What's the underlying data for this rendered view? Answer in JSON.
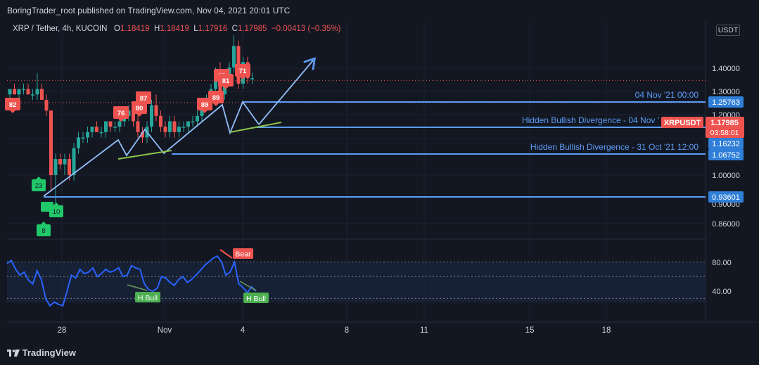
{
  "header": {
    "publisher": "BoringTrader_root published on TradingView.com, Nov 04, 2021 20:01 UTC"
  },
  "symbol": {
    "name": "XRP / Tether, 4h, KUCOIN",
    "o_label": "O",
    "o": "1.18419",
    "h_label": "H",
    "h": "1.18419",
    "l_label": "L",
    "l": "1.17916",
    "c_label": "C",
    "c": "1.17985",
    "change": "−0.00413 (−0.35%)"
  },
  "currency": "USDT",
  "footer": {
    "brand": "TradingView"
  },
  "colors": {
    "background": "#131722",
    "bull": "#26a69a",
    "bear": "#ef5350",
    "line_blue": "#5b9cf6",
    "trend_green": "#8bc34a",
    "rsi_line": "#2962ff",
    "label_bg": "#2f7fd8"
  },
  "chart_data": [
    {
      "type": "candlestick",
      "timeframe": "4h",
      "y_axis_ticks": [
        "1.40000",
        "1.30000",
        "1.20000",
        "1.10000",
        "1.00000",
        "0.90000",
        "0.86000"
      ],
      "x_axis_ticks": [
        "28",
        "Nov",
        "4",
        "8",
        "11",
        "15",
        "18"
      ],
      "price_levels": [
        {
          "price": "1.25763",
          "label": "04 Nov '21 00:00"
        },
        {
          "price": "1.17985",
          "label": "XRPUSDT",
          "countdown": "03:58:01"
        },
        {
          "price": "1.16232",
          "label": "Hidden Bullish Divergence - 04 Nov '"
        },
        {
          "price": "1.06752",
          "label": "Hidden Bullish Divergence - 31 Oct '21 12:00"
        },
        {
          "price": "0.93601",
          "label": ""
        }
      ],
      "bear_markers": [
        "82",
        "76",
        "80",
        "87",
        "85",
        "89",
        "81",
        "89",
        "71"
      ],
      "bull_markers": [
        "23",
        "10",
        "8"
      ],
      "candles_approx": [
        [
          1.15,
          1.16,
          1.14,
          1.16
        ],
        [
          1.16,
          1.17,
          1.15,
          1.15
        ],
        [
          1.15,
          1.16,
          1.14,
          1.16
        ],
        [
          1.16,
          1.17,
          1.15,
          1.16
        ],
        [
          1.16,
          1.17,
          1.15,
          1.15
        ],
        [
          1.15,
          1.16,
          1.14,
          1.15
        ],
        [
          1.15,
          1.19,
          1.14,
          1.16
        ],
        [
          1.16,
          1.17,
          1.14,
          1.14
        ],
        [
          1.14,
          1.15,
          1.11,
          1.12
        ],
        [
          1.12,
          1.12,
          0.97,
          1.0
        ],
        [
          1.0,
          1.04,
          0.94,
          1.03
        ],
        [
          1.03,
          1.04,
          1.01,
          1.02
        ],
        [
          1.02,
          1.04,
          1.0,
          1.03
        ],
        [
          1.03,
          1.04,
          0.99,
          1.0
        ],
        [
          1.0,
          1.06,
          0.99,
          1.05
        ],
        [
          1.05,
          1.08,
          1.04,
          1.07
        ],
        [
          1.07,
          1.08,
          1.06,
          1.07
        ],
        [
          1.07,
          1.09,
          1.06,
          1.08
        ],
        [
          1.08,
          1.09,
          1.07,
          1.09
        ],
        [
          1.09,
          1.1,
          1.08,
          1.08
        ],
        [
          1.08,
          1.09,
          1.07,
          1.08
        ],
        [
          1.08,
          1.1,
          1.07,
          1.1
        ],
        [
          1.1,
          1.1,
          1.08,
          1.09
        ],
        [
          1.09,
          1.1,
          1.08,
          1.09
        ],
        [
          1.09,
          1.11,
          1.08,
          1.1
        ],
        [
          1.1,
          1.12,
          1.09,
          1.11
        ],
        [
          1.11,
          1.13,
          1.1,
          1.12
        ],
        [
          1.12,
          1.13,
          1.09,
          1.1
        ],
        [
          1.1,
          1.11,
          1.07,
          1.08
        ],
        [
          1.08,
          1.09,
          1.06,
          1.07
        ],
        [
          1.07,
          1.1,
          1.06,
          1.09
        ],
        [
          1.09,
          1.14,
          1.08,
          1.13
        ],
        [
          1.13,
          1.15,
          1.1,
          1.11
        ],
        [
          1.11,
          1.12,
          1.08,
          1.09
        ],
        [
          1.09,
          1.1,
          1.07,
          1.08
        ],
        [
          1.08,
          1.11,
          1.07,
          1.1
        ],
        [
          1.1,
          1.11,
          1.07,
          1.08
        ],
        [
          1.08,
          1.1,
          1.07,
          1.09
        ],
        [
          1.09,
          1.1,
          1.08,
          1.09
        ],
        [
          1.09,
          1.1,
          1.08,
          1.1
        ],
        [
          1.1,
          1.11,
          1.09,
          1.1
        ],
        [
          1.1,
          1.12,
          1.09,
          1.11
        ],
        [
          1.11,
          1.14,
          1.1,
          1.13
        ],
        [
          1.13,
          1.15,
          1.12,
          1.14
        ],
        [
          1.14,
          1.17,
          1.13,
          1.16
        ],
        [
          1.16,
          1.2,
          1.15,
          1.19
        ],
        [
          1.19,
          1.21,
          1.14,
          1.15
        ],
        [
          1.15,
          1.19,
          1.14,
          1.18
        ],
        [
          1.18,
          1.21,
          1.17,
          1.2
        ],
        [
          1.2,
          1.26,
          1.19,
          1.24
        ],
        [
          1.24,
          1.25,
          1.16,
          1.17
        ],
        [
          1.17,
          1.22,
          1.16,
          1.21
        ],
        [
          1.21,
          1.22,
          1.17,
          1.18
        ],
        [
          1.18,
          1.19,
          1.17,
          1.18
        ]
      ]
    },
    {
      "type": "line",
      "name": "RSI",
      "y_axis_ticks": [
        "80.00",
        "40.00"
      ],
      "signal_labels": [
        "Bear",
        "H Bull",
        "H Bull"
      ],
      "values_approx": [
        78,
        82,
        70,
        62,
        66,
        55,
        50,
        68,
        56,
        30,
        20,
        25,
        22,
        20,
        40,
        62,
        58,
        70,
        64,
        66,
        72,
        60,
        64,
        70,
        66,
        68,
        72,
        60,
        62,
        75,
        72,
        70,
        50,
        42,
        40,
        44,
        60,
        58,
        52,
        48,
        56,
        60,
        52,
        56,
        62,
        68,
        75,
        80,
        85,
        88,
        80,
        62,
        66,
        80,
        50,
        45,
        38,
        46,
        40
      ]
    }
  ]
}
